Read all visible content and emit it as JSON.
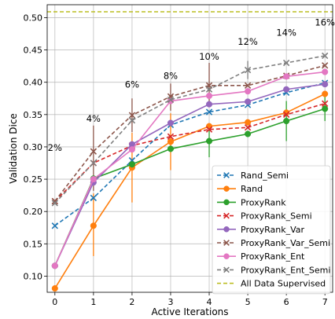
{
  "chart_data": {
    "type": "line",
    "title": "",
    "xlabel": "Active Iterations",
    "ylabel": "Validation Dice",
    "xlim": [
      -0.2,
      7.2
    ],
    "ylim": [
      0.075,
      0.52
    ],
    "grid": true,
    "legend_position": "bottom-right",
    "x": [
      0,
      1,
      2,
      3,
      4,
      5,
      6,
      7
    ],
    "x_ticks": [
      "0",
      "1",
      "2",
      "3",
      "4",
      "5",
      "6",
      "7"
    ],
    "y_ticks": [
      "0.10",
      "0.15",
      "0.20",
      "0.25",
      "0.30",
      "0.35",
      "0.40",
      "0.45",
      "0.50"
    ],
    "y_tick_values": [
      0.1,
      0.15,
      0.2,
      0.25,
      0.3,
      0.35,
      0.4,
      0.45,
      0.5
    ],
    "series": [
      {
        "name": "Rand_Semi",
        "color": "#1f77b4",
        "dash": true,
        "marker": "x",
        "values": [
          0.178,
          0.221,
          0.279,
          0.334,
          0.354,
          0.365,
          0.384,
          0.399
        ]
      },
      {
        "name": "Rand",
        "color": "#ff7f0e",
        "dash": false,
        "marker": "o",
        "values": [
          0.081,
          0.178,
          0.268,
          0.308,
          0.332,
          0.338,
          0.353,
          0.382
        ]
      },
      {
        "name": "ProxyRank",
        "color": "#2ca02c",
        "dash": false,
        "marker": "o",
        "values": [
          0.116,
          0.251,
          0.273,
          0.297,
          0.309,
          0.32,
          0.34,
          0.359
        ]
      },
      {
        "name": "ProxyRank_Semi",
        "color": "#d62728",
        "dash": true,
        "marker": "x",
        "values": [
          0.216,
          0.275,
          0.302,
          0.316,
          0.327,
          0.33,
          0.35,
          0.367
        ]
      },
      {
        "name": "ProxyRank_Var",
        "color": "#9467bd",
        "dash": false,
        "marker": "o",
        "values": [
          0.116,
          0.245,
          0.304,
          0.337,
          0.366,
          0.37,
          0.389,
          0.397
        ]
      },
      {
        "name": "ProxyRank_Var_Semi",
        "color": "#8c564b",
        "dash": true,
        "marker": "x",
        "values": [
          0.216,
          0.293,
          0.349,
          0.378,
          0.395,
          0.395,
          0.41,
          0.426
        ]
      },
      {
        "name": "ProxyRank_Ent",
        "color": "#e377c2",
        "dash": false,
        "marker": "o",
        "values": [
          0.116,
          0.25,
          0.296,
          0.371,
          0.379,
          0.386,
          0.409,
          0.416
        ]
      },
      {
        "name": "ProxyRank_Ent_Semi",
        "color": "#7f7f7f",
        "dash": true,
        "marker": "x",
        "values": [
          0.213,
          0.275,
          0.341,
          0.373,
          0.389,
          0.419,
          0.43,
          0.441
        ]
      },
      {
        "name": "All Data Supervised",
        "color": "#bcbd22",
        "dash": true,
        "marker": "none",
        "values": [
          0.509,
          0.509,
          0.509,
          0.509,
          0.509,
          0.509,
          0.509,
          0.509
        ]
      }
    ],
    "error_bars": [
      {
        "x": 1,
        "low": 0.232,
        "high": 0.333,
        "color": "#8c564b"
      },
      {
        "x": 1,
        "low": 0.131,
        "high": 0.228,
        "color": "#ff7f0e"
      },
      {
        "x": 2,
        "low": 0.323,
        "high": 0.375,
        "color": "#8c564b"
      },
      {
        "x": 2,
        "low": 0.214,
        "high": 0.322,
        "color": "#ff7f0e"
      },
      {
        "x": 3,
        "low": 0.356,
        "high": 0.398,
        "color": "#8c564b"
      },
      {
        "x": 3,
        "low": 0.264,
        "high": 0.352,
        "color": "#ff7f0e"
      },
      {
        "x": 4,
        "low": 0.364,
        "high": 0.43,
        "color": "#8c564b"
      },
      {
        "x": 4,
        "low": 0.284,
        "high": 0.334,
        "color": "#2ca02c"
      },
      {
        "x": 5,
        "low": 0.405,
        "high": 0.433,
        "color": "#7f7f7f"
      },
      {
        "x": 6,
        "low": 0.309,
        "high": 0.371,
        "color": "#2ca02c"
      },
      {
        "x": 7,
        "low": 0.34,
        "high": 0.378,
        "color": "#2ca02c"
      }
    ],
    "annotations": [
      {
        "text": "2%",
        "x": 0,
        "y": 0.294
      },
      {
        "text": "4%",
        "x": 1,
        "y": 0.339
      },
      {
        "text": "6%",
        "x": 2,
        "y": 0.392
      },
      {
        "text": "8%",
        "x": 3,
        "y": 0.405
      },
      {
        "text": "10%",
        "x": 4,
        "y": 0.435
      },
      {
        "text": "12%",
        "x": 5,
        "y": 0.458
      },
      {
        "text": "14%",
        "x": 6,
        "y": 0.472
      },
      {
        "text": "16%",
        "x": 7,
        "y": 0.488
      }
    ]
  }
}
